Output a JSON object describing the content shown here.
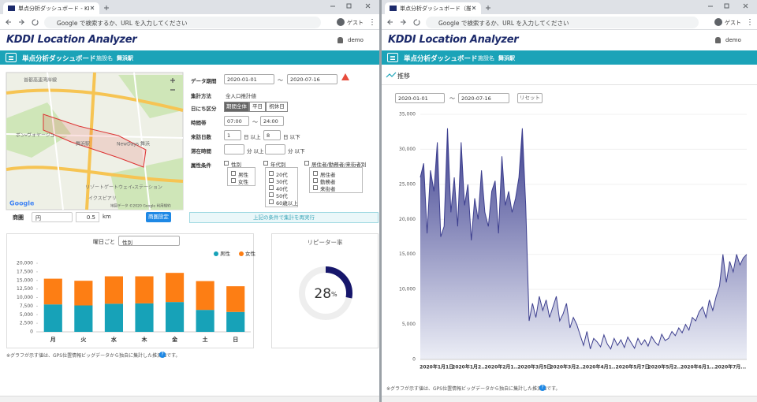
{
  "windows": [
    {
      "tab": "単点分析ダッシュボード - KDDI Loca",
      "address": "Google で検索するか、URL を入力してください",
      "user": "ゲスト"
    },
    {
      "tab": "単点分析ダッシュボード（推移） - K",
      "address": "Google で検索するか、URL を入力してください",
      "user": "ゲスト"
    }
  ],
  "app": {
    "logo_brand": "KDDI",
    "logo_product": "Location Analyzer",
    "account": "demo",
    "page_title": "単点分析ダッシュボード",
    "facility_label": "施設名",
    "facility": "舞浜駅"
  },
  "map": {
    "labels": [
      "首都高速湾岸線",
      "舞浜駅",
      "NewDays 舞浜",
      "ボン・ヴォヤージュ",
      "リゾートゲートウェイ・ステーション",
      "イクスピアリ"
    ],
    "logo": "Google",
    "attribution": "地図データ ©2020 Google 利用規約"
  },
  "area": {
    "label": "商圏",
    "shape": "円",
    "radius": "0.5",
    "unit": "km",
    "button": "商圏設定"
  },
  "form": {
    "period": {
      "label": "データ期間",
      "start": "2020-01-01",
      "sep": "～",
      "end": "2020-07-16"
    },
    "method": {
      "label": "集計方法",
      "value": "全人口推計値"
    },
    "day_type": {
      "label": "日にち区分",
      "options": [
        "期間全体",
        "平日",
        "祝休日"
      ]
    },
    "time": {
      "label": "時間帯",
      "start": "07:00",
      "sep": "～",
      "end": "24:00"
    },
    "visits": {
      "label": "来訪日数",
      "min": "1",
      "min_unit": "日 以上",
      "max": "8",
      "max_unit": "日 以下"
    },
    "stay": {
      "label": "滞在時間",
      "min_unit": "分 以上",
      "max_unit": "分 以下"
    },
    "attributes": {
      "label": "属性条件",
      "groups": [
        {
          "name": "性別",
          "options": [
            "男性",
            "女性"
          ]
        },
        {
          "name": "年代別",
          "options": [
            "20代",
            "30代",
            "40代",
            "50代",
            "60歳以上"
          ]
        },
        {
          "name": "居住者/勤務者/来街者別",
          "options": [
            "居住者",
            "勤務者",
            "来街者"
          ]
        }
      ]
    },
    "submit": "上記の条件で集計を再実行"
  },
  "weekday_card": {
    "label": "曜日ごと",
    "select": "性別"
  },
  "repeater": {
    "title": "リピーター率",
    "value": 28,
    "unit": "%"
  },
  "trend": {
    "heading": "推移",
    "start": "2020-01-01",
    "sep": "～",
    "end": "2020-07-16",
    "reset": "リセット"
  },
  "footnote": "※グラフが示す値は、GPS位置情報ビッグデータから独自に集計した推測値です。",
  "help": "?",
  "chart_data": [
    {
      "type": "bar",
      "stacked": true,
      "categories": [
        "月",
        "火",
        "水",
        "木",
        "金",
        "土",
        "日"
      ],
      "series": [
        {
          "name": "男性",
          "color": "#17a2b8",
          "values": [
            8000,
            7700,
            8200,
            8300,
            8700,
            6400,
            5800
          ]
        },
        {
          "name": "女性",
          "color": "#fd7e14",
          "values": [
            7500,
            7200,
            8000,
            7900,
            8500,
            8400,
            7500
          ]
        }
      ],
      "ylim": [
        0,
        20000
      ],
      "yticks": [
        0,
        {
          "value": 2500,
          "label": "2,500"
        },
        {
          "value": 5000,
          "label": "5,000"
        },
        {
          "value": 7500,
          "label": "7,500"
        },
        {
          "value": 10000,
          "label": "10,000"
        },
        {
          "value": 12500,
          "label": "12,500"
        },
        {
          "value": 15000,
          "label": "15,000"
        },
        {
          "value": 17500,
          "label": "17,500"
        },
        {
          "value": 20000,
          "label": "20,000"
        }
      ],
      "grid": false,
      "legend": "top-right"
    },
    {
      "type": "area",
      "color": "#3d3f8f",
      "values": [
        26000,
        28000,
        18000,
        27000,
        24000,
        31000,
        17500,
        19000,
        33000,
        21000,
        26000,
        19000,
        31000,
        22000,
        25000,
        17000,
        23000,
        20000,
        27000,
        21000,
        19000,
        24000,
        25500,
        18000,
        29000,
        22000,
        24000,
        21000,
        23000,
        26000,
        33000,
        22000,
        5500,
        8000,
        6000,
        9000,
        7000,
        8500,
        6000,
        7500,
        9000,
        5500,
        6500,
        8000,
        4500,
        6000,
        5000,
        3500,
        2000,
        4000,
        1500,
        3000,
        2500,
        1800,
        3500,
        2200,
        1500,
        3000,
        2000,
        2800,
        1700,
        3200,
        2400,
        1600,
        3000,
        2100,
        2800,
        1900,
        3300,
        2500,
        2000,
        3600,
        2700,
        3000,
        4000,
        3400,
        4500,
        3800,
        5000,
        4200,
        6000,
        5500,
        6800,
        7500,
        6000,
        8500,
        7000,
        9000,
        10500,
        15000,
        11000,
        14000,
        12500,
        15000,
        13500,
        14500,
        15000
      ],
      "ylim": [
        0,
        35000
      ],
      "yticks": [
        0,
        {
          "value": 5000,
          "label": "5,000"
        },
        {
          "value": 10000,
          "label": "10,000"
        },
        {
          "value": 15000,
          "label": "15,000"
        },
        {
          "value": 20000,
          "label": "20,000"
        },
        {
          "value": 25000,
          "label": "25,000"
        },
        {
          "value": 30000,
          "label": "30,000"
        },
        {
          "value": 35000,
          "label": "35,000"
        }
      ],
      "xtick_labels": [
        "2020年1月1日",
        "2020年1月2...",
        "2020年2月1...",
        "2020年3月5日",
        "2020年3月2...",
        "2020年4月1...",
        "2020年5月7日",
        "2020年5月2...",
        "2020年6月1...",
        "2020年7月..."
      ],
      "grid": true
    }
  ]
}
